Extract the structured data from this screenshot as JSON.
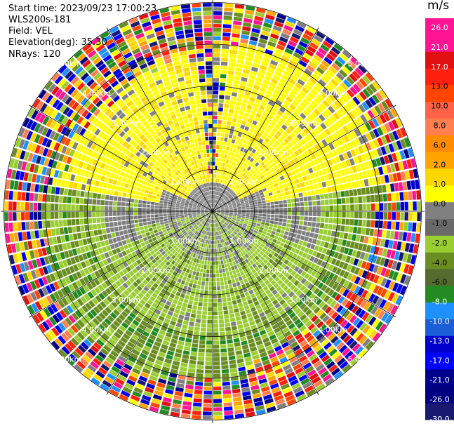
{
  "header": {
    "start_time": "Start time: 2023/09/23 17:00:23",
    "instrument": "WLS200s-181",
    "field": "Field: VEL",
    "elevation": "Elevation(deg): 35.30",
    "nrays": "NRays: 120"
  },
  "chart_data": {
    "type": "heatmap",
    "projection": "polar-ppi",
    "field": "VEL",
    "unit": "m/s",
    "range_rings_km": [
      1.0,
      2.0,
      3.0,
      4.0,
      5.0
    ],
    "range_ring_labels": [
      "1.00km",
      "2.00km",
      "3.00km",
      "4.00km",
      "5.00km"
    ],
    "max_range_km": 5.2,
    "n_rays": 120,
    "azimuth_spokes_deg": [
      0,
      30,
      60,
      90,
      120,
      150,
      180,
      210,
      240,
      270,
      300,
      330
    ],
    "colorbar": {
      "title": "m/s",
      "ticks": [
        "26.0",
        "21.0",
        "17.0",
        "13.0",
        "10.0",
        "8.0",
        "6.0",
        "2.0",
        "1.0",
        "0.0",
        "-1.0",
        "-2.0",
        "-4.0",
        "-6.0",
        "-8.0",
        "-10.0",
        "-13.0",
        "-17.0",
        "-21.0",
        "-26.0",
        "-30.0"
      ],
      "colors": [
        "#ff1493",
        "#ff1493",
        "#e01010",
        "#ff2010",
        "#ff4500",
        "#ff6347",
        "#ff7f50",
        "#ff8c00",
        "#ffa500",
        "#ffd700",
        "#ffff00",
        "#808080",
        "#696969",
        "#9acd32",
        "#6b8e23",
        "#556b2f",
        "#228b22",
        "#1e90ff",
        "#1a5fd8",
        "#0000cd",
        "#0000ff",
        "#00008b",
        "#000080",
        "#191970"
      ]
    },
    "regions": [
      {
        "name": "positive-north-east",
        "value_range": [
          1.0,
          6.0
        ],
        "color": "#ffd700"
      },
      {
        "name": "near-zero-ring",
        "value_range": [
          -1.0,
          1.0
        ],
        "color": "#808080"
      },
      {
        "name": "negative-south",
        "value_range": [
          -6.0,
          -1.0
        ],
        "color": "#9acd32"
      },
      {
        "name": "noise-outer",
        "value_range": [
          -30.0,
          26.0
        ],
        "color": "mixed"
      }
    ]
  }
}
